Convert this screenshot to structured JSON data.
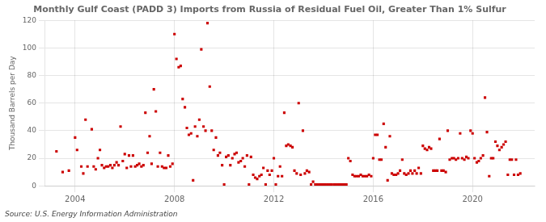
{
  "chart_data": {
    "type": "scatter",
    "title": "Monthly Gulf Coast (PADD 3) Imports from Russia of Residual Fuel Oil, Greater Than 1% Sulfur",
    "ylabel": "Thousand Barrels per Day",
    "source": "Source: U.S. Energy Information Administration",
    "color": "#cc0000",
    "marker": "square",
    "grid": true,
    "xlim": [
      2002.8,
      2022.5
    ],
    "xticks": [
      2004,
      2008,
      2012,
      2016,
      2020
    ],
    "ylim": [
      0,
      120
    ],
    "yticks": [
      0,
      20,
      40,
      60,
      80,
      100,
      120
    ],
    "x": [
      2003.25,
      2003.5,
      2003.75,
      2004.0,
      2004.08,
      2004.25,
      2004.33,
      2004.42,
      2004.5,
      2004.67,
      2004.75,
      2004.83,
      2004.92,
      2005.0,
      2005.08,
      2005.17,
      2005.25,
      2005.33,
      2005.42,
      2005.5,
      2005.58,
      2005.67,
      2005.75,
      2005.83,
      2005.92,
      2006.0,
      2006.08,
      2006.17,
      2006.25,
      2006.33,
      2006.42,
      2006.5,
      2006.58,
      2006.67,
      2006.75,
      2006.83,
      2006.92,
      2007.0,
      2007.08,
      2007.17,
      2007.25,
      2007.33,
      2007.42,
      2007.5,
      2007.58,
      2007.67,
      2007.75,
      2007.83,
      2007.92,
      2008.0,
      2008.08,
      2008.17,
      2008.25,
      2008.33,
      2008.42,
      2008.5,
      2008.58,
      2008.67,
      2008.75,
      2008.83,
      2008.92,
      2009.0,
      2009.08,
      2009.17,
      2009.25,
      2009.33,
      2009.42,
      2009.5,
      2009.58,
      2009.67,
      2009.75,
      2009.83,
      2009.92,
      2010.0,
      2010.08,
      2010.17,
      2010.25,
      2010.33,
      2010.42,
      2010.5,
      2010.58,
      2010.67,
      2010.75,
      2010.83,
      2010.92,
      2011.0,
      2011.08,
      2011.17,
      2011.25,
      2011.33,
      2011.42,
      2011.5,
      2011.58,
      2011.67,
      2011.75,
      2011.83,
      2011.92,
      2012.0,
      2012.08,
      2012.17,
      2012.25,
      2012.33,
      2012.42,
      2012.5,
      2012.58,
      2012.67,
      2012.75,
      2012.83,
      2012.92,
      2013.0,
      2013.08,
      2013.17,
      2013.25,
      2013.33,
      2013.42,
      2013.5,
      2013.58,
      2013.67,
      2013.75,
      2013.83,
      2013.92,
      2014.0,
      2014.08,
      2014.17,
      2014.25,
      2014.33,
      2014.42,
      2014.5,
      2014.58,
      2014.67,
      2014.75,
      2014.83,
      2014.92,
      2015.0,
      2015.08,
      2015.17,
      2015.25,
      2015.33,
      2015.42,
      2015.5,
      2015.58,
      2015.67,
      2015.75,
      2015.83,
      2015.92,
      2016.0,
      2016.08,
      2016.17,
      2016.25,
      2016.33,
      2016.42,
      2016.5,
      2016.58,
      2016.67,
      2016.75,
      2016.83,
      2016.92,
      2017.0,
      2017.08,
      2017.17,
      2017.25,
      2017.33,
      2017.42,
      2017.5,
      2017.58,
      2017.67,
      2017.75,
      2017.83,
      2017.92,
      2018.0,
      2018.08,
      2018.17,
      2018.25,
      2018.33,
      2018.42,
      2018.5,
      2018.58,
      2018.67,
      2018.75,
      2018.83,
      2018.92,
      2019.0,
      2019.08,
      2019.17,
      2019.25,
      2019.33,
      2019.42,
      2019.5,
      2019.58,
      2019.67,
      2019.75,
      2019.83,
      2019.92,
      2020.0,
      2020.08,
      2020.17,
      2020.25,
      2020.33,
      2020.42,
      2020.5,
      2020.58,
      2020.67,
      2020.75,
      2020.83,
      2020.92,
      2021.0,
      2021.08,
      2021.17,
      2021.25,
      2021.33,
      2021.42,
      2021.5,
      2021.58,
      2021.67,
      2021.75,
      2021.83,
      2021.92
    ],
    "values": [
      25,
      10,
      11,
      35,
      26,
      14,
      9,
      48,
      14,
      41,
      14,
      12,
      20,
      26,
      15,
      13,
      14,
      14,
      15,
      13,
      15,
      17,
      15,
      43,
      18,
      23,
      13,
      22,
      14,
      22,
      14,
      15,
      16,
      14,
      15,
      53,
      24,
      36,
      16,
      70,
      54,
      14,
      24,
      14,
      13,
      13,
      22,
      14,
      16,
      110,
      92,
      86,
      87,
      63,
      57,
      42,
      37,
      38,
      4,
      43,
      36,
      48,
      99,
      43,
      40,
      118,
      72,
      40,
      26,
      35,
      22,
      24,
      15,
      1,
      21,
      22,
      15,
      20,
      23,
      24,
      17,
      18,
      20,
      14,
      22,
      1,
      21,
      8,
      6,
      5,
      7,
      8,
      13,
      1,
      11,
      8,
      11,
      20,
      1,
      7,
      14,
      7,
      53,
      29,
      30,
      29,
      28,
      11,
      9,
      60,
      8,
      40,
      9,
      11,
      10,
      1,
      3,
      1,
      1,
      1,
      1,
      1,
      1,
      1,
      1,
      1,
      1,
      1,
      1,
      1,
      1,
      1,
      1,
      20,
      18,
      8,
      7,
      7,
      7,
      8,
      7,
      7,
      7,
      8,
      7,
      20,
      37,
      37,
      19,
      19,
      45,
      28,
      4,
      36,
      9,
      8,
      8,
      9,
      11,
      19,
      9,
      8,
      9,
      11,
      9,
      11,
      9,
      13,
      9,
      29,
      27,
      26,
      28,
      27,
      11,
      11,
      11,
      34,
      11,
      11,
      10,
      40,
      19,
      20,
      20,
      19,
      20,
      38,
      20,
      19,
      21,
      20,
      40,
      38,
      20,
      17,
      18,
      20,
      22,
      64,
      39,
      7,
      20,
      20,
      32,
      29,
      26,
      28,
      30,
      32,
      8,
      19,
      19,
      8,
      19,
      8,
      9
    ]
  }
}
